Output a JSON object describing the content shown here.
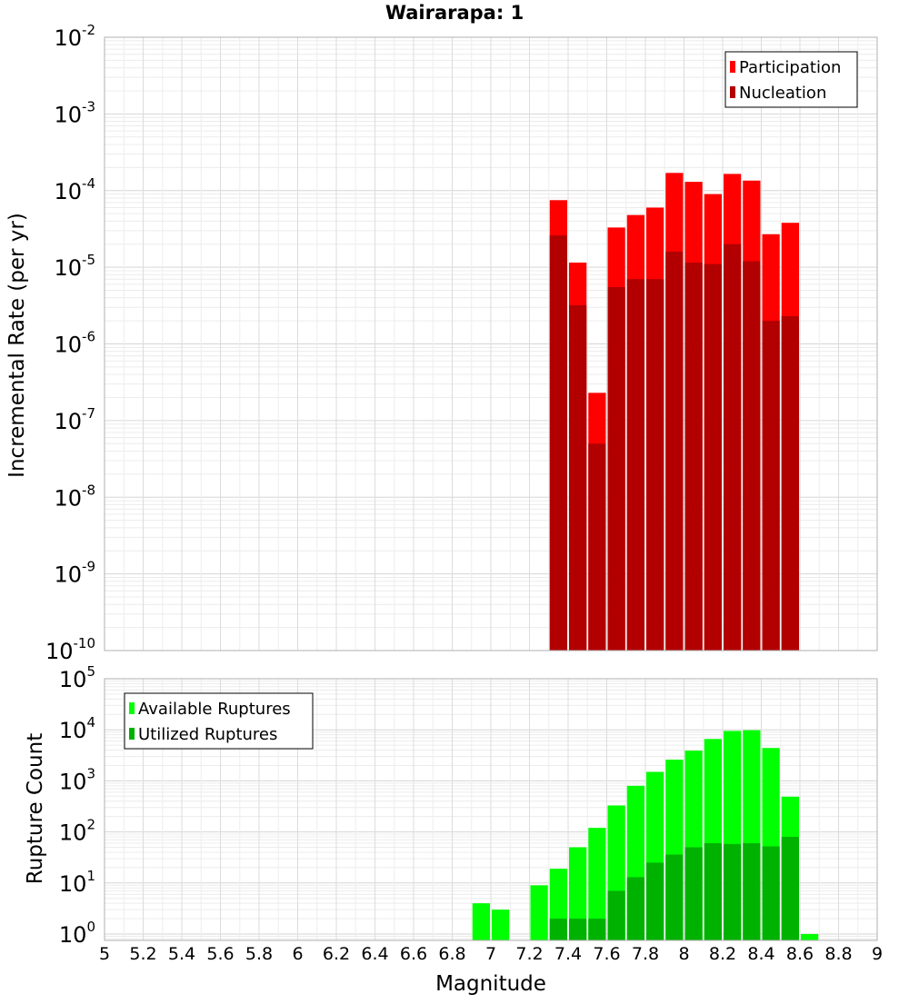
{
  "chart_data": [
    {
      "type": "bar",
      "title": "Wairarapa: 1",
      "ylabel": "Incremental Rate (per yr)",
      "xlabel": "",
      "yscale": "log",
      "ylim": [
        1e-10,
        0.01
      ],
      "xlim": [
        5,
        9
      ],
      "bin_width": 0.1,
      "grid": true,
      "legend_position": "top-right",
      "series": [
        {
          "name": "Participation",
          "color": "#ff0000",
          "points": [
            [
              7.35,
              7.5e-05
            ],
            [
              7.45,
              1.15e-05
            ],
            [
              7.55,
              2.3e-07
            ],
            [
              7.65,
              3.3e-05
            ],
            [
              7.75,
              4.8e-05
            ],
            [
              7.85,
              6e-05
            ],
            [
              7.95,
              0.00017
            ],
            [
              8.05,
              0.00013
            ],
            [
              8.15,
              9e-05
            ],
            [
              8.25,
              0.000165
            ],
            [
              8.35,
              0.000135
            ],
            [
              8.45,
              2.7e-05
            ],
            [
              8.55,
              3.8e-05
            ]
          ]
        },
        {
          "name": "Nucleation",
          "color": "#b20000",
          "points": [
            [
              7.35,
              2.6e-05
            ],
            [
              7.45,
              3.2e-06
            ],
            [
              7.55,
              5e-08
            ],
            [
              7.65,
              5.5e-06
            ],
            [
              7.75,
              7e-06
            ],
            [
              7.85,
              7e-06
            ],
            [
              7.95,
              1.6e-05
            ],
            [
              8.05,
              1.15e-05
            ],
            [
              8.15,
              1.1e-05
            ],
            [
              8.25,
              2e-05
            ],
            [
              8.35,
              1.2e-05
            ],
            [
              8.45,
              2e-06
            ],
            [
              8.55,
              2.3e-06
            ]
          ]
        }
      ]
    },
    {
      "type": "bar",
      "title": "",
      "ylabel": "Rupture Count",
      "xlabel": "Magnitude",
      "yscale": "log",
      "ylim": [
        0.75,
        100000
      ],
      "xlim": [
        5,
        9
      ],
      "bin_width": 0.1,
      "grid": true,
      "legend_position": "top-left",
      "xticks": [
        "5",
        "5.2",
        "5.4",
        "5.6",
        "5.8",
        "6",
        "6.2",
        "6.4",
        "6.6",
        "6.8",
        "7",
        "7.2",
        "7.4",
        "7.6",
        "7.8",
        "8",
        "8.2",
        "8.4",
        "8.6",
        "8.8",
        "9"
      ],
      "series": [
        {
          "name": "Available Ruptures",
          "color": "#00ff00",
          "points": [
            [
              6.95,
              4
            ],
            [
              7.05,
              3
            ],
            [
              7.25,
              9
            ],
            [
              7.35,
              19
            ],
            [
              7.45,
              50
            ],
            [
              7.55,
              120
            ],
            [
              7.65,
              330
            ],
            [
              7.75,
              800
            ],
            [
              7.85,
              1500
            ],
            [
              7.95,
              2600
            ],
            [
              8.05,
              3900
            ],
            [
              8.15,
              6600
            ],
            [
              8.25,
              9500
            ],
            [
              8.35,
              9800
            ],
            [
              8.45,
              4400
            ],
            [
              8.55,
              490
            ],
            [
              8.65,
              1
            ]
          ]
        },
        {
          "name": "Utilized Ruptures",
          "color": "#00b200",
          "points": [
            [
              7.35,
              2
            ],
            [
              7.45,
              2
            ],
            [
              7.55,
              2
            ],
            [
              7.65,
              7
            ],
            [
              7.75,
              13
            ],
            [
              7.85,
              25
            ],
            [
              7.95,
              36
            ],
            [
              8.05,
              50
            ],
            [
              8.15,
              60
            ],
            [
              8.25,
              58
            ],
            [
              8.35,
              60
            ],
            [
              8.45,
              52
            ],
            [
              8.55,
              80
            ]
          ]
        }
      ]
    }
  ]
}
